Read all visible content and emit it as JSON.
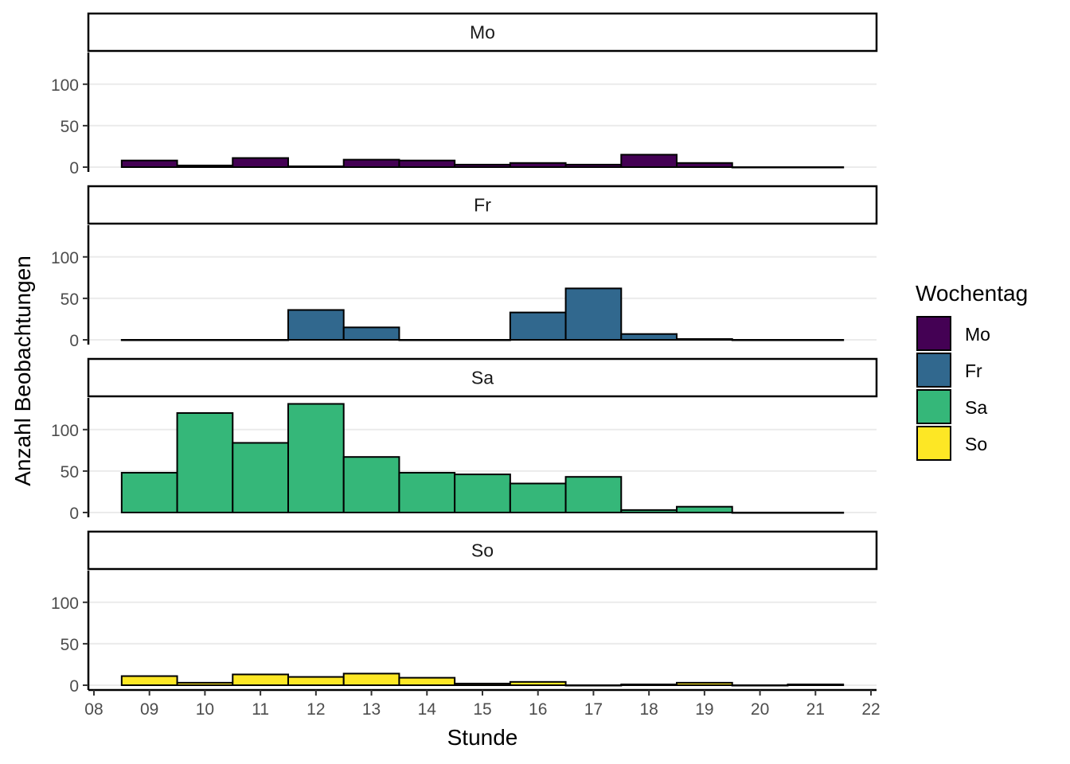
{
  "chart_data": {
    "type": "bar",
    "subtype": "faceted-histogram",
    "xlabel": "Stunde",
    "ylabel": "Anzahl Beobachtungen",
    "x_ticks": [
      "08",
      "09",
      "10",
      "11",
      "12",
      "13",
      "14",
      "15",
      "16",
      "17",
      "18",
      "19",
      "20",
      "21",
      "22"
    ],
    "xlim": [
      7.9,
      22.1
    ],
    "ylim": [
      0,
      135
    ],
    "y_ticks": [
      0,
      50,
      100
    ],
    "bin_centers": [
      9,
      10,
      11,
      12,
      13,
      14,
      15,
      16,
      17,
      18,
      19,
      20,
      21
    ],
    "bin_width": 1,
    "grid": "horizontal-major",
    "legend": {
      "title": "Wochentag",
      "placement": "right"
    },
    "facets": [
      {
        "name": "Mo",
        "color": "#440154",
        "values": [
          8,
          2,
          11,
          1,
          9,
          8,
          3,
          5,
          3,
          15,
          5,
          0,
          0
        ]
      },
      {
        "name": "Fr",
        "color": "#31688E",
        "values": [
          0,
          0,
          0,
          36,
          15,
          0,
          0,
          33,
          62,
          7,
          1,
          0,
          0
        ]
      },
      {
        "name": "Sa",
        "color": "#35B779",
        "values": [
          48,
          120,
          84,
          131,
          67,
          48,
          46,
          35,
          43,
          3,
          7,
          0,
          0
        ]
      },
      {
        "name": "So",
        "color": "#FDE725",
        "values": [
          11,
          3,
          13,
          10,
          14,
          9,
          2,
          4,
          0,
          1,
          3,
          0,
          1
        ]
      }
    ]
  }
}
